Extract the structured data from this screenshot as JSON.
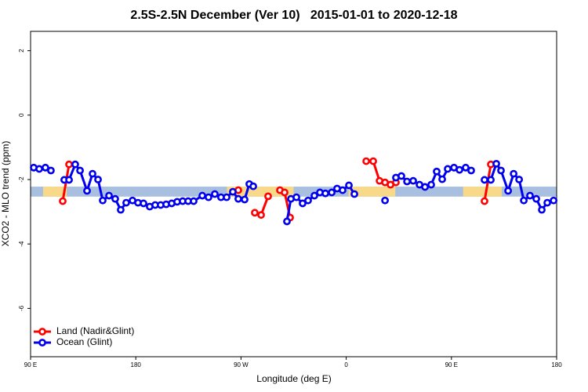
{
  "chart_data": {
    "type": "line",
    "title": "2.5S-2.5N December (Ver 10)   2015-01-01 to 2020-12-18",
    "x_label": "Longitude (deg E)",
    "y_label": "XCO2 - MLO trend (ppm)",
    "xlim": [
      90,
      540
    ],
    "xticks": [
      {
        "value": 90,
        "label": "90 E"
      },
      180,
      {
        "value": 270,
        "label": "90 W"
      },
      {
        "value": 360,
        "label": "0"
      },
      {
        "value": 450,
        "label": "90 E"
      },
      {
        "value": 540,
        "label": "180"
      }
    ],
    "ylim": [
      -7.5,
      2.6
    ],
    "yticks": [
      2,
      0,
      -2,
      -4,
      -6
    ],
    "legend": "bottom-left",
    "band": {
      "ylim": [
        -2.53,
        -2.22
      ],
      "color": "#a8bfe0",
      "highlight_color": "#f8d98a",
      "highlight_x": [
        [
          100.7,
          120.9
        ],
        [
          258,
          315
        ],
        [
          362,
          402
        ],
        [
          460,
          493
        ]
      ]
    },
    "series": [
      {
        "name": "Land (Nadir&Glint)",
        "color": "#ff0000",
        "x": [
          117.5,
          122.9,
          null,
          267.7,
          null,
          281.8,
          287.2,
          293.2,
          null,
          303.3,
          307.3,
          312.0,
          null,
          377.1,
          383.1,
          388.5,
          393.2,
          397.9,
          402.5,
          null,
          478.3,
          483.7
        ],
        "values": [
          -2.67,
          -1.53,
          null,
          -2.33,
          null,
          -3.03,
          -3.1,
          -2.52,
          null,
          -2.33,
          -2.4,
          -3.18,
          null,
          -1.43,
          -1.43,
          -2.04,
          -2.09,
          -2.16,
          -2.09,
          null,
          -2.67,
          -1.53
        ]
      },
      {
        "name": "Ocean (Glint)",
        "color": "#0000ee",
        "x": [
          92.7,
          97.4,
          102.7,
          107.4,
          null,
          118.8,
          122.9,
          128.2,
          132.3,
          138.3,
          143.0,
          147.7,
          151.7,
          157.1,
          162.4,
          167.1,
          171.8,
          177.2,
          181.9,
          186.6,
          191.9,
          196.6,
          201.3,
          206.0,
          210.7,
          215.4,
          220.1,
          224.8,
          229.5,
          236.9,
          242.2,
          247.6,
          252.9,
          257.7,
          263.0,
          267.7,
          273.1,
          277.1,
          280.5,
          null,
          309.3,
          312.7,
          317.4,
          322.7,
          327.4,
          332.8,
          337.5,
          342.2,
          347.6,
          352.2,
          356.9,
          362.3,
          367.0,
          null,
          393.2,
          null,
          402.5,
          407.2,
          412.0,
          417.3,
          422.7,
          427.4,
          432.7,
          437.4,
          442.1,
          446.8,
          452.2,
          456.9,
          462.2,
          466.9,
          null,
          478.3,
          483.7,
          488.4,
          492.4,
          498.5,
          503.2,
          507.9,
          511.9,
          517.2,
          522.6,
          527.3,
          532.0,
          537.4
        ],
        "values": [
          -1.63,
          -1.67,
          -1.63,
          -1.72,
          null,
          -2.01,
          -2.01,
          -1.53,
          -1.72,
          -2.35,
          -1.82,
          -2.0,
          -2.65,
          -2.5,
          -2.6,
          -2.94,
          -2.72,
          -2.65,
          -2.72,
          -2.74,
          -2.84,
          -2.79,
          -2.79,
          -2.77,
          -2.74,
          -2.69,
          -2.67,
          -2.67,
          -2.67,
          -2.5,
          -2.55,
          -2.45,
          -2.55,
          -2.55,
          -2.38,
          -2.6,
          -2.62,
          -2.14,
          -2.21,
          null,
          -3.3,
          -2.6,
          -2.55,
          -2.74,
          -2.65,
          -2.5,
          -2.4,
          -2.43,
          -2.4,
          -2.28,
          -2.33,
          -2.18,
          -2.45,
          null,
          -2.65,
          null,
          -1.94,
          -1.89,
          -2.06,
          -2.04,
          -2.16,
          -2.23,
          -2.16,
          -1.75,
          -1.99,
          -1.67,
          -1.63,
          -1.7,
          -1.63,
          -1.72,
          null,
          -2.01,
          -2.01,
          -1.51,
          -1.72,
          -2.35,
          -1.82,
          -2.0,
          -2.65,
          -2.5,
          -2.6,
          -2.94,
          -2.72,
          -2.65
        ]
      }
    ]
  }
}
